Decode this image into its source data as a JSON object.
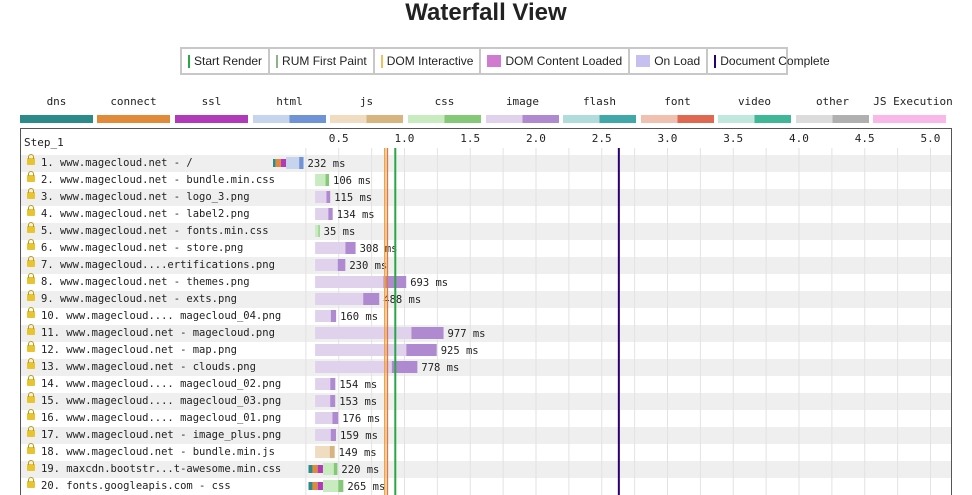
{
  "page_title": "Waterfall View",
  "key": [
    {
      "label": "Start Render",
      "color": "#28a745",
      "style": "line"
    },
    {
      "label": "RUM First Paint",
      "color": "#8fb389",
      "style": "line"
    },
    {
      "label": "DOM Interactive",
      "color": "#f0c060",
      "style": "line"
    },
    {
      "label": "DOM Content Loaded",
      "color": "#d07ad0",
      "style": "box"
    },
    {
      "label": "On Load",
      "color": "#c6c0f0",
      "style": "box"
    },
    {
      "label": "Document Complete",
      "color": "#2a0070",
      "style": "line"
    }
  ],
  "legend": [
    {
      "label": "dns",
      "colors": [
        "#2c8a8a",
        "#2c8a8a"
      ]
    },
    {
      "label": "connect",
      "colors": [
        "#e08a3a",
        "#e08a3a"
      ]
    },
    {
      "label": "ssl",
      "colors": [
        "#b03ab8",
        "#b03ab8"
      ]
    },
    {
      "label": "html",
      "colors": [
        "#c6d4ee",
        "#6f93d6"
      ]
    },
    {
      "label": "js",
      "colors": [
        "#f0dcc0",
        "#d8b480"
      ]
    },
    {
      "label": "css",
      "colors": [
        "#c8ecc0",
        "#84c878"
      ]
    },
    {
      "label": "image",
      "colors": [
        "#e0d2ec",
        "#b08ad0"
      ]
    },
    {
      "label": "flash",
      "colors": [
        "#b0dcdc",
        "#40a8a8"
      ]
    },
    {
      "label": "font",
      "colors": [
        "#f0c0b0",
        "#e06850"
      ]
    },
    {
      "label": "video",
      "colors": [
        "#c0e8dc",
        "#40b898"
      ]
    },
    {
      "label": "other",
      "colors": [
        "#dcdcdc",
        "#b0b0b0"
      ]
    },
    {
      "label": "JS Execution",
      "colors": [
        "#f8b8e8",
        "#f8b8e8"
      ]
    }
  ],
  "chart_data": {
    "type": "waterfall",
    "step_label": "Step_1",
    "x_ticks": [
      "0.5",
      "1.0",
      "1.5",
      "2.0",
      "2.5",
      "3.0",
      "3.5",
      "4.0",
      "4.5",
      "5.0"
    ],
    "x_unit": "s",
    "xlim": [
      0,
      5.2
    ],
    "markers": {
      "start_render": 0.93,
      "rum_first_paint": 0.87,
      "dom_interactive": 0.85,
      "document_complete": 2.63
    },
    "requests": [
      {
        "label": "1. www.magecloud.net - /",
        "type": "html",
        "start": 0.0,
        "duration_ms": 232,
        "ms_label": "232 ms"
      },
      {
        "label": "2. www.magecloud.net - bundle.min.css",
        "type": "css",
        "start": 0.32,
        "duration_ms": 106,
        "ms_label": "106 ms"
      },
      {
        "label": "3. www.magecloud.net - logo_3.png",
        "type": "image",
        "start": 0.32,
        "duration_ms": 115,
        "ms_label": "115 ms"
      },
      {
        "label": "4. www.magecloud.net - label2.png",
        "type": "image",
        "start": 0.32,
        "duration_ms": 134,
        "ms_label": "134 ms"
      },
      {
        "label": "5. www.magecloud.net - fonts.min.css",
        "type": "css",
        "start": 0.32,
        "duration_ms": 35,
        "ms_label": "35 ms"
      },
      {
        "label": "6. www.magecloud.net - store.png",
        "type": "image",
        "start": 0.32,
        "duration_ms": 308,
        "ms_label": "308 ms"
      },
      {
        "label": "7. www.magecloud....ertifications.png",
        "type": "image",
        "start": 0.32,
        "duration_ms": 230,
        "ms_label": "230 ms"
      },
      {
        "label": "8. www.magecloud.net - themes.png",
        "type": "image",
        "start": 0.32,
        "duration_ms": 693,
        "ms_label": "693 ms"
      },
      {
        "label": "9. www.magecloud.net - exts.png",
        "type": "image",
        "start": 0.32,
        "duration_ms": 488,
        "ms_label": "488 ms"
      },
      {
        "label": "10. www.magecloud.... magecloud_04.png",
        "type": "image",
        "start": 0.32,
        "duration_ms": 160,
        "ms_label": "160 ms"
      },
      {
        "label": "11. www.magecloud.net - magecloud.png",
        "type": "image",
        "start": 0.32,
        "duration_ms": 977,
        "ms_label": "977 ms"
      },
      {
        "label": "12. www.magecloud.net - map.png",
        "type": "image",
        "start": 0.32,
        "duration_ms": 925,
        "ms_label": "925 ms"
      },
      {
        "label": "13. www.magecloud.net - clouds.png",
        "type": "image",
        "start": 0.32,
        "duration_ms": 778,
        "ms_label": "778 ms"
      },
      {
        "label": "14. www.magecloud.... magecloud_02.png",
        "type": "image",
        "start": 0.32,
        "duration_ms": 154,
        "ms_label": "154 ms"
      },
      {
        "label": "15. www.magecloud.... magecloud_03.png",
        "type": "image",
        "start": 0.32,
        "duration_ms": 153,
        "ms_label": "153 ms"
      },
      {
        "label": "16. www.magecloud.... magecloud_01.png",
        "type": "image",
        "start": 0.32,
        "duration_ms": 176,
        "ms_label": "176 ms"
      },
      {
        "label": "17. www.magecloud.net - image_plus.png",
        "type": "image",
        "start": 0.32,
        "duration_ms": 159,
        "ms_label": "159 ms"
      },
      {
        "label": "18. www.magecloud.net - bundle.min.js",
        "type": "js",
        "start": 0.32,
        "duration_ms": 149,
        "ms_label": "149 ms"
      },
      {
        "label": "19. maxcdn.bootstr...t-awesome.min.css",
        "type": "css",
        "start": 0.27,
        "duration_ms": 220,
        "ms_label": "220 ms",
        "conn": true
      },
      {
        "label": "20. fonts.googleapis.com - css",
        "type": "css",
        "start": 0.27,
        "duration_ms": 265,
        "ms_label": "265 ms",
        "conn": true
      }
    ]
  }
}
